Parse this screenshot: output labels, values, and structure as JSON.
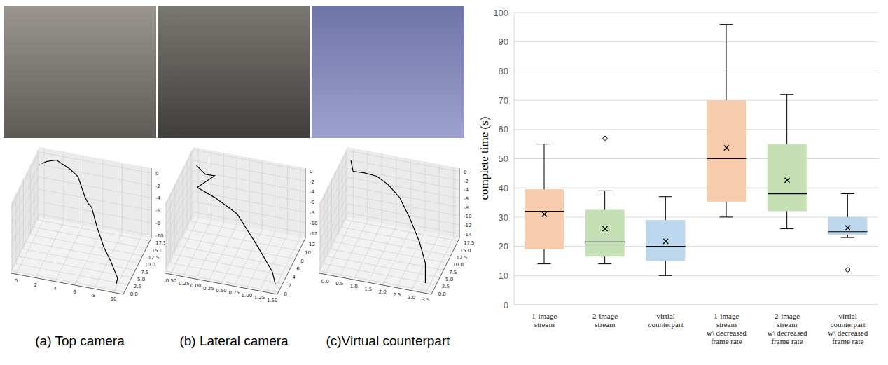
{
  "chart_data": [
    {
      "type": "line3d",
      "title": "(a) Top camera",
      "color": "#000000",
      "xlim": [
        -0.5,
        11
      ],
      "ylim": [
        -0.8,
        18.5
      ],
      "zlim": [
        -10.5,
        0.8
      ],
      "xticks": [
        0,
        2,
        4,
        6,
        8,
        10
      ],
      "yticks": [
        {
          "value": 0,
          "label": "0.0"
        },
        {
          "value": 2.5,
          "label": "2.5"
        },
        {
          "value": 5,
          "label": "5.0"
        },
        {
          "value": 7.5,
          "label": "7.5"
        },
        {
          "value": 10,
          "label": "10.0"
        },
        {
          "value": 12.5,
          "label": "12.5"
        },
        {
          "value": 15,
          "label": "15.0"
        },
        {
          "value": 17.5,
          "label": "17.5"
        }
      ],
      "zticks": [
        0,
        -2,
        -4,
        -6,
        -8,
        -10
      ],
      "x": [
        0,
        0.5,
        1.5,
        3,
        4,
        5,
        5.5,
        6,
        7,
        8,
        9,
        10,
        10
      ],
      "y": [
        17,
        17,
        17,
        16,
        15,
        13,
        12,
        11,
        8,
        6,
        4,
        2,
        1
      ],
      "z": [
        -1,
        -0.5,
        0,
        -0.5,
        -1,
        -3,
        -3.5,
        -3.5,
        -5,
        -7,
        -8,
        -9.5,
        -10
      ]
    },
    {
      "type": "line3d",
      "title": "(b) Lateral camera",
      "color": "#000000",
      "xlim": [
        -0.6,
        1.6
      ],
      "ylim": [
        -0.5,
        13
      ],
      "zlim": [
        -13,
        0.5
      ],
      "xticks": [
        {
          "value": -0.5,
          "label": "-0.50"
        },
        {
          "value": -0.25,
          "label": "-0.25"
        },
        {
          "value": 0,
          "label": "0.00"
        },
        {
          "value": 0.25,
          "label": "0.25"
        },
        {
          "value": 0.5,
          "label": "0.50"
        },
        {
          "value": 0.75,
          "label": "0.75"
        },
        {
          "value": 1,
          "label": "1.00"
        },
        {
          "value": 1.25,
          "label": "1.25"
        },
        {
          "value": 1.5,
          "label": "1.50"
        }
      ],
      "yticks": [
        0,
        2,
        4,
        6,
        8,
        10,
        12
      ],
      "zticks": [
        0,
        -2,
        -4,
        -6,
        -8,
        -10,
        -12
      ],
      "x": [
        -0.5,
        -0.3,
        -0.1,
        -0.4,
        0,
        0.5,
        1,
        1.4,
        1.5
      ],
      "y": [
        12,
        11.5,
        11,
        10,
        9,
        7,
        4,
        2,
        1
      ],
      "z": [
        -2,
        -3,
        -2.5,
        -4.5,
        -5,
        -5.5,
        -8,
        -11,
        -12.5
      ]
    },
    {
      "type": "line3d",
      "title": "(c)Virtual counterpart",
      "color": "#000000",
      "xlim": [
        -0.2,
        3.7
      ],
      "ylim": [
        -0.8,
        18.5
      ],
      "zlim": [
        -15,
        0.8
      ],
      "xticks": [
        {
          "value": 0,
          "label": "0.0"
        },
        {
          "value": 0.5,
          "label": "0.5"
        },
        {
          "value": 1,
          "label": "1.0"
        },
        {
          "value": 1.5,
          "label": "1.5"
        },
        {
          "value": 2,
          "label": "2.0"
        },
        {
          "value": 2.5,
          "label": "2.5"
        },
        {
          "value": 3,
          "label": "3.0"
        },
        {
          "value": 3.5,
          "label": "3.5"
        }
      ],
      "yticks": [
        {
          "value": 0,
          "label": "0.0"
        },
        {
          "value": 2.5,
          "label": "2.5"
        },
        {
          "value": 5,
          "label": "5.0"
        },
        {
          "value": 7.5,
          "label": "7.5"
        },
        {
          "value": 10,
          "label": "10.0"
        },
        {
          "value": 12.5,
          "label": "12.5"
        },
        {
          "value": 15,
          "label": "15.0"
        },
        {
          "value": 17.5,
          "label": "17.5"
        }
      ],
      "zticks": [
        0,
        -2,
        -4,
        -6,
        -8,
        -10,
        -12,
        -14
      ],
      "x": [
        0,
        0.1,
        0.5,
        1,
        1.5,
        2,
        2.5,
        3,
        3.3,
        3.4
      ],
      "y": [
        17,
        16.5,
        16,
        15,
        13,
        11,
        8,
        5,
        3,
        1
      ],
      "z": [
        -1,
        -3,
        -2.5,
        -2,
        -2,
        -3,
        -5,
        -8,
        -11,
        -14
      ]
    },
    {
      "type": "box",
      "ylabel": "complete time (s)",
      "grid": true,
      "ylim": [
        0,
        100
      ],
      "yticks": [
        0,
        10,
        20,
        30,
        40,
        50,
        60,
        70,
        80,
        90,
        100
      ],
      "categories": [
        "1-image stream",
        "2-image stream",
        "virtial counterpart",
        "1-image stream w\\ decreased frame rate",
        "2-image stream w\\ decreased frame rate",
        "virtial counterpart w\\ decreased frame rate"
      ],
      "colors": [
        "#f8cbad",
        "#c5e0b4",
        "#bdd7ee",
        "#f8cbad",
        "#c5e0b4",
        "#bdd7ee"
      ],
      "min": [
        14,
        14,
        10,
        30,
        26,
        23
      ],
      "q1": [
        19,
        16.5,
        15,
        35.3,
        32,
        24
      ],
      "median": [
        32,
        21.5,
        20,
        50,
        38,
        25
      ],
      "q3": [
        39.5,
        32.5,
        29,
        70,
        55,
        30
      ],
      "max": [
        55,
        39,
        37,
        96,
        72,
        38
      ],
      "mean": [
        31,
        26,
        21.7,
        53.7,
        42.6,
        26.3
      ],
      "mean_marker": "x",
      "outliers": [
        [],
        [
          57
        ],
        [],
        [],
        [],
        [
          12
        ]
      ]
    }
  ]
}
